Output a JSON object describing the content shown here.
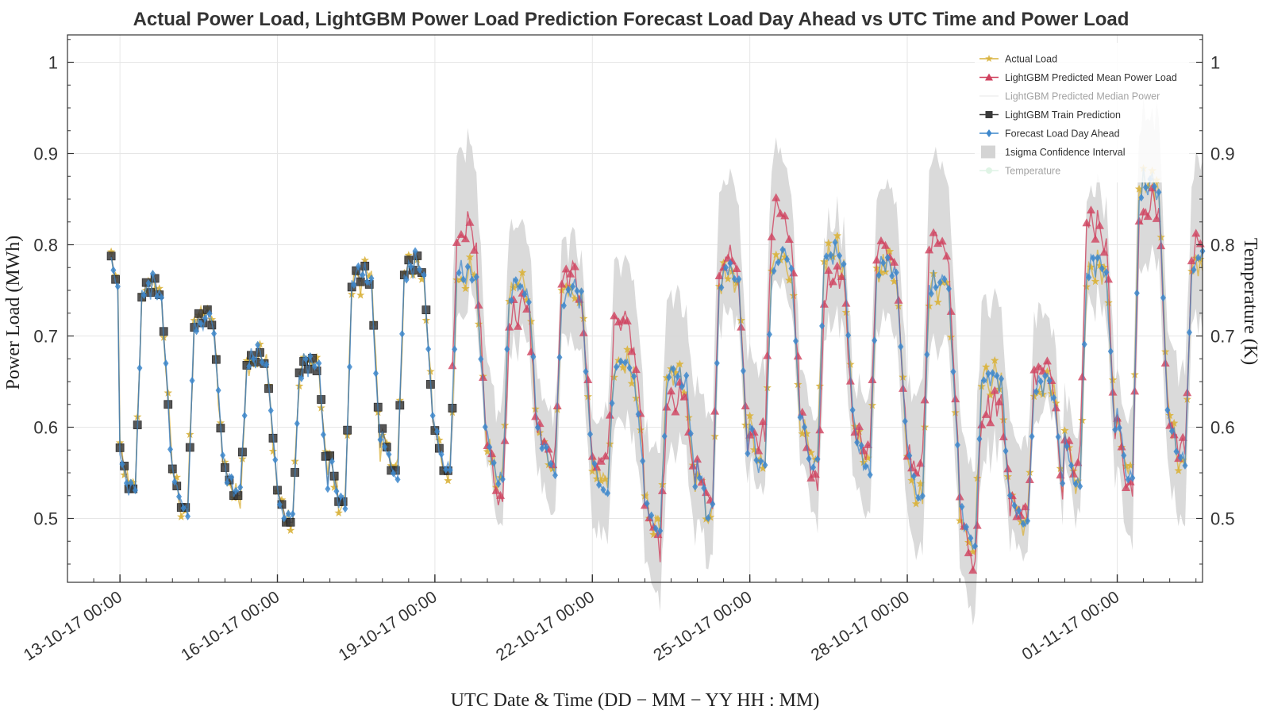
{
  "chart_data": {
    "type": "line",
    "title": "Actual Power Load, LightGBM Power Load Prediction Forecast Load Day Ahead vs UTC Time and Power Load",
    "xlabel": "UTC Date & Time (DD − MM − YY  HH : MM)",
    "ylabel": "Power Load (MWh)",
    "y2label": "Temperature (K)",
    "xlim": [
      "2017-10-12T00:00",
      "2017-11-02T15:00"
    ],
    "ylim": [
      0.43,
      1.03
    ],
    "y2lim": [
      0.43,
      1.03
    ],
    "yticks": [
      "0.5",
      "0.6",
      "0.7",
      "0.8",
      "0.9",
      "1"
    ],
    "y2ticks": [
      "0.5",
      "0.6",
      "0.7",
      "0.8",
      "0.9",
      "1"
    ],
    "xticks": [
      "13-10-17 00:00",
      "16-10-17 00:00",
      "19-10-17 00:00",
      "22-10-17 00:00",
      "25-10-17 00:00",
      "28-10-17 00:00",
      "01-11-17 00:00"
    ],
    "x_tick_dates": [
      "2017-10-13T00:00",
      "2017-10-16T00:00",
      "2017-10-19T00:00",
      "2017-10-22T00:00",
      "2017-10-25T00:00",
      "2017-10-28T00:00",
      "2017-11-01T00:00"
    ],
    "grid": true,
    "legend_position": "top-right",
    "train_end": "2017-10-19T08:00",
    "series": [
      {
        "name": "Actual Load",
        "color": "#d9b23c",
        "marker": "star"
      },
      {
        "name": "LightGBM Predicted Mean Power Load",
        "color": "#d0425f",
        "marker": "triangle"
      },
      {
        "name": "LightGBM Predicted Median Power",
        "color": "#dddddd",
        "marker": "none",
        "faded": true
      },
      {
        "name": "LightGBM Train Prediction",
        "color": "#3a3a3a",
        "marker": "square"
      },
      {
        "name": "Forecast Load Day Ahead",
        "color": "#3e88cc",
        "marker": "diamond"
      },
      {
        "name": "1sigma Confidence Interval",
        "color": "#d4d4d4",
        "marker": "patch"
      },
      {
        "name": "Temperature",
        "color": "#b9e8c6",
        "marker": "circle",
        "faded": true
      }
    ],
    "daily_profile": {
      "note": "values in MWh; one entry per day starting 2017-10-12",
      "days": [
        {
          "date": "2017-10-12",
          "min": 0.73,
          "max": 0.81
        },
        {
          "date": "2017-10-13",
          "min": 0.525,
          "max": 0.775
        },
        {
          "date": "2017-10-14",
          "min": 0.505,
          "max": 0.74
        },
        {
          "date": "2017-10-15",
          "min": 0.52,
          "max": 0.69
        },
        {
          "date": "2017-10-16",
          "min": 0.49,
          "max": 0.685
        },
        {
          "date": "2017-10-17",
          "min": 0.51,
          "max": 0.79
        },
        {
          "date": "2017-10-18",
          "min": 0.545,
          "max": 0.8
        },
        {
          "date": "2017-10-19",
          "min": 0.545,
          "max": 0.79
        },
        {
          "date": "2017-10-20",
          "min": 0.535,
          "max": 0.775
        },
        {
          "date": "2017-10-21",
          "min": 0.55,
          "max": 0.765
        },
        {
          "date": "2017-10-22",
          "min": 0.53,
          "max": 0.68
        },
        {
          "date": "2017-10-23",
          "min": 0.485,
          "max": 0.67
        },
        {
          "date": "2017-10-24",
          "min": 0.5,
          "max": 0.79
        },
        {
          "date": "2017-10-25",
          "min": 0.55,
          "max": 0.805
        },
        {
          "date": "2017-10-26",
          "min": 0.55,
          "max": 0.81
        },
        {
          "date": "2017-10-27",
          "min": 0.55,
          "max": 0.8
        },
        {
          "date": "2017-10-28",
          "min": 0.52,
          "max": 0.78
        },
        {
          "date": "2017-10-29",
          "min": 0.47,
          "max": 0.67
        },
        {
          "date": "2017-10-30",
          "min": 0.49,
          "max": 0.66
        },
        {
          "date": "2017-10-31",
          "min": 0.53,
          "max": 0.8
        },
        {
          "date": "2017-11-01",
          "min": 0.54,
          "max": 0.9
        },
        {
          "date": "2017-11-02",
          "min": 0.56,
          "max": 0.8
        }
      ]
    }
  }
}
